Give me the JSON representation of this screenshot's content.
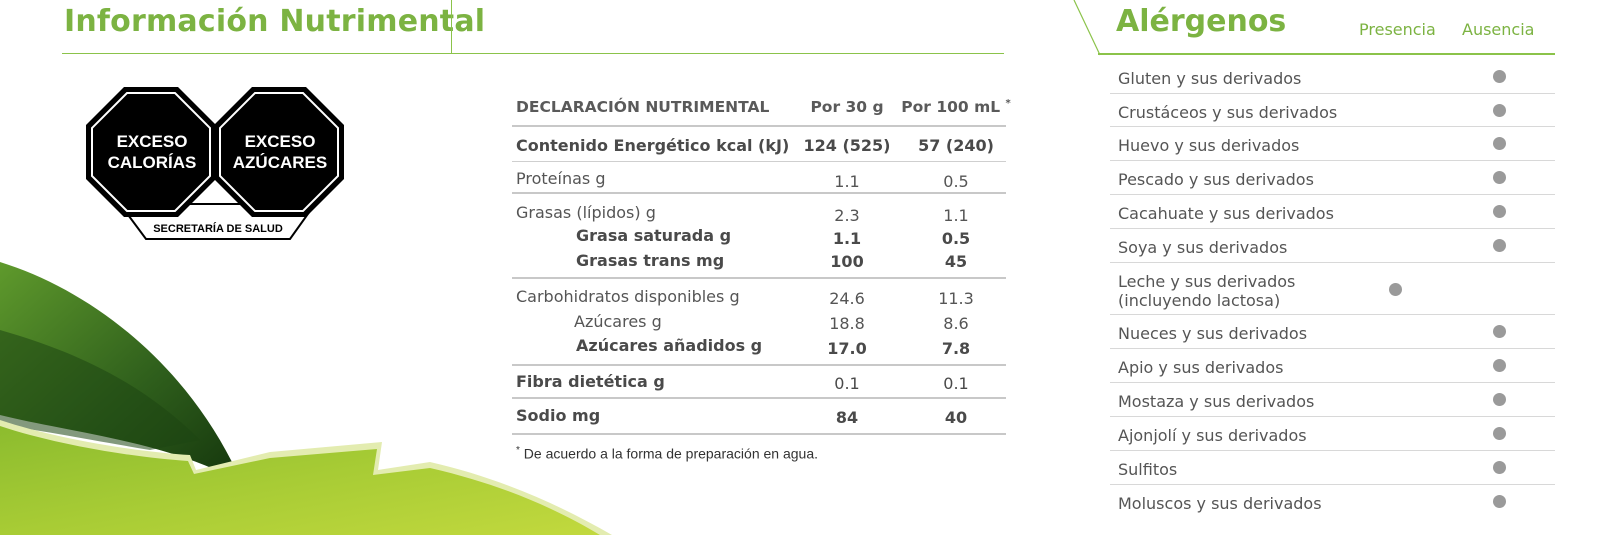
{
  "colors": {
    "brand_green": "#7cb342",
    "leaf_dark": "#2e5f1f",
    "leaf_light": "#a5c83a",
    "dot_gray": "#9a9a9a"
  },
  "left_header": {
    "title": "Información Nutrimental"
  },
  "seals": {
    "seal_1": {
      "line1": "EXCESO",
      "line2": "CALORÍAS"
    },
    "seal_2": {
      "line1": "EXCESO",
      "line2": "AZÚCARES"
    },
    "footer": "SECRETARÍA DE SALUD"
  },
  "nutrition": {
    "header": {
      "label": "DECLARACIÓN NUTRIMENTAL",
      "col1": "Por 30 g",
      "col2": "Por 100 mL",
      "col2_mark": "*"
    },
    "rows": [
      {
        "label": "Contenido Energético kcal (kJ)",
        "v1": "124 (525)",
        "v2": "57 (240)"
      },
      {
        "label": "Proteínas g",
        "v1": "1.1",
        "v2": "0.5"
      },
      {
        "label": "Grasas (lípidos) g",
        "v1": "2.3",
        "v2": "1.1"
      },
      {
        "label": "Grasa saturada g",
        "v1": "1.1",
        "v2": "0.5"
      },
      {
        "label": "Grasas trans mg",
        "v1": "100",
        "v2": "45"
      },
      {
        "label": "Carbohidratos disponibles g",
        "v1": "24.6",
        "v2": "11.3"
      },
      {
        "label": "Azúcares g",
        "v1": "18.8",
        "v2": "8.6"
      },
      {
        "label": "Azúcares añadidos g",
        "v1": "17.0",
        "v2": "7.8"
      },
      {
        "label": "Fibra dietética g",
        "v1": "0.1",
        "v2": "0.1"
      },
      {
        "label": "Sodio mg",
        "v1": "84",
        "v2": "40"
      }
    ],
    "footnote_mark": "*",
    "footnote": "De acuerdo a la forma de preparación en agua."
  },
  "allergens": {
    "title": "Alérgenos",
    "col_presence": "Presencia",
    "col_absence": "Ausencia",
    "items": [
      {
        "name": "Gluten y sus derivados",
        "status": "absence"
      },
      {
        "name": "Crustáceos y sus derivados",
        "status": "absence"
      },
      {
        "name": "Huevo y sus derivados",
        "status": "absence"
      },
      {
        "name": "Pescado y sus derivados",
        "status": "absence"
      },
      {
        "name": "Cacahuate y sus derivados",
        "status": "absence"
      },
      {
        "name": "Soya y sus derivados",
        "status": "absence"
      },
      {
        "name": "Leche y sus derivados",
        "name_line2": "(incluyendo lactosa)",
        "status": "presence"
      },
      {
        "name": "Nueces y sus derivados",
        "status": "absence"
      },
      {
        "name": "Apio y sus derivados",
        "status": "absence"
      },
      {
        "name": "Mostaza y sus derivados",
        "status": "absence"
      },
      {
        "name": "Ajonjolí y sus derivados",
        "status": "absence"
      },
      {
        "name": "Sulfitos",
        "status": "absence"
      },
      {
        "name": "Moluscos y sus derivados",
        "status": "absence"
      }
    ]
  }
}
